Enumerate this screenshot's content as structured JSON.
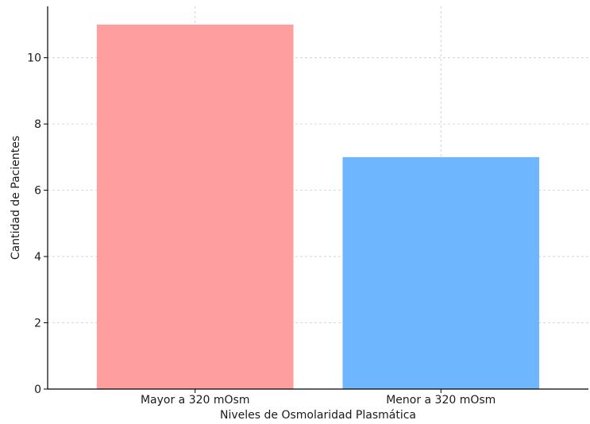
{
  "chart_data": {
    "type": "bar",
    "categories": [
      "Mayor a 320 mOsm",
      "Menor a 320 mOsm"
    ],
    "values": [
      11,
      7
    ],
    "colors": [
      "#ff9999",
      "#66b3ff"
    ],
    "title": "",
    "xlabel": "Niveles de Osmolaridad Plasmática",
    "ylabel": "Cantidad de Pacientes",
    "ylim": [
      0,
      11.55
    ],
    "yticks": [
      0,
      2,
      4,
      6,
      8,
      10
    ],
    "grid": true
  }
}
